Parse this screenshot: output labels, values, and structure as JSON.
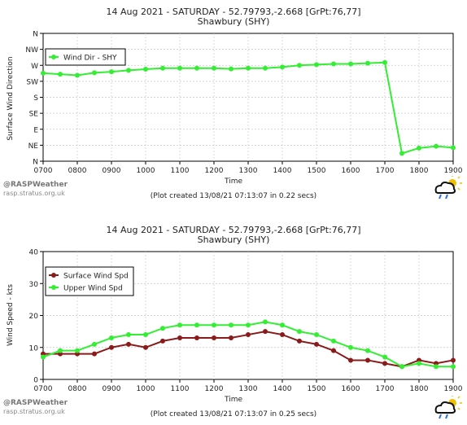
{
  "charts": [
    {
      "title_line1": "14 Aug 2021 - SATURDAY - 52.79793,-2.668 [GrPt:76,77]",
      "title_line2": "Shawbury (SHY)",
      "ylabel": "Surface Wind Direction",
      "xlabel": "Time",
      "credit_name": "@RASPWeather",
      "credit_site": "rasp.stratus.org.uk",
      "created_note": "(Plot created 13/08/21 07:13:07 in 0.22 secs)"
    },
    {
      "title_line1": "14 Aug 2021 - SATURDAY - 52.79793,-2.668 [GrPt:76,77]",
      "title_line2": "Shawbury (SHY)",
      "ylabel": "Wind Speed - kts",
      "xlabel": "Time",
      "credit_name": "@RASPWeather",
      "credit_site": "rasp.stratus.org.uk",
      "created_note": "(Plot created 13/08/21 07:13:07 in 0.25 secs)"
    }
  ],
  "chart_data": [
    {
      "type": "line",
      "title": "14 Aug 2021 - SATURDAY - 52.79793,-2.668 [GrPt:76,77] Shawbury (SHY)",
      "xlabel": "Time",
      "ylabel": "Surface Wind Direction",
      "x": [
        "0700",
        "0730",
        "0800",
        "0830",
        "0900",
        "0930",
        "1000",
        "1030",
        "1100",
        "1130",
        "1200",
        "1230",
        "1300",
        "1330",
        "1400",
        "1430",
        "1500",
        "1530",
        "1600",
        "1630",
        "1700",
        "1730",
        "1800",
        "1830",
        "1900"
      ],
      "xticks": [
        "0700",
        "0800",
        "0900",
        "1000",
        "1100",
        "1200",
        "1300",
        "1400",
        "1500",
        "1600",
        "1700",
        "1800",
        "1900"
      ],
      "yticks": [
        "N",
        "NE",
        "E",
        "SE",
        "S",
        "SW",
        "W",
        "NW",
        "N"
      ],
      "ylim": [
        0,
        360
      ],
      "series": [
        {
          "name": "Wind Dir - SHY",
          "color": "#33ee33",
          "values": [
            248,
            245,
            242,
            249,
            252,
            256,
            259,
            262,
            262,
            262,
            262,
            260,
            262,
            262,
            265,
            270,
            272,
            274,
            274,
            276,
            278,
            22,
            37,
            42,
            38
          ]
        }
      ],
      "legend": "top-left",
      "grid": true
    },
    {
      "type": "line",
      "title": "14 Aug 2021 - SATURDAY - 52.79793,-2.668 [GrPt:76,77] Shawbury (SHY)",
      "xlabel": "Time",
      "ylabel": "Wind Speed - kts",
      "x": [
        "0700",
        "0730",
        "0800",
        "0830",
        "0900",
        "0930",
        "1000",
        "1030",
        "1100",
        "1130",
        "1200",
        "1230",
        "1300",
        "1330",
        "1400",
        "1430",
        "1500",
        "1530",
        "1600",
        "1630",
        "1700",
        "1730",
        "1800",
        "1830",
        "1900"
      ],
      "xticks": [
        "0700",
        "0800",
        "0900",
        "1000",
        "1100",
        "1200",
        "1300",
        "1400",
        "1500",
        "1600",
        "1700",
        "1800",
        "1900"
      ],
      "yticks": [
        "0",
        "10",
        "20",
        "30",
        "40"
      ],
      "ylim": [
        0,
        40
      ],
      "series": [
        {
          "name": "Surface Wind Spd",
          "color": "#8b1a1a",
          "values": [
            8,
            8,
            8,
            8,
            10,
            11,
            10,
            12,
            13,
            13,
            13,
            13,
            14,
            15,
            14,
            12,
            11,
            9,
            6,
            6,
            5,
            4,
            6,
            5,
            6
          ]
        },
        {
          "name": "Upper Wind Spd",
          "color": "#33ee33",
          "values": [
            7,
            9,
            9,
            11,
            13,
            14,
            14,
            16,
            17,
            17,
            17,
            17,
            17,
            18,
            17,
            15,
            14,
            12,
            10,
            9,
            7,
            4,
            5,
            4,
            4
          ]
        }
      ],
      "legend": "top-left",
      "grid": true
    }
  ]
}
